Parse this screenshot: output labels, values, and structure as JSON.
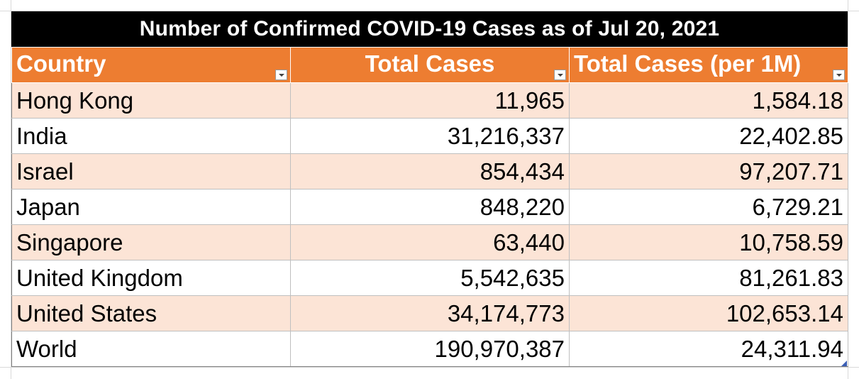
{
  "table": {
    "title": "Number of Confirmed COVID-19 Cases as of Jul 20, 2021",
    "columns": [
      "Country",
      "Total Cases",
      "Total Cases (per 1M)"
    ],
    "rows": [
      {
        "country": "Hong Kong",
        "total_cases": "11,965",
        "per_1m": "1,584.18"
      },
      {
        "country": "India",
        "total_cases": "31,216,337",
        "per_1m": "22,402.85"
      },
      {
        "country": "Israel",
        "total_cases": "854,434",
        "per_1m": "97,207.71"
      },
      {
        "country": "Japan",
        "total_cases": "848,220",
        "per_1m": "6,729.21"
      },
      {
        "country": "Singapore",
        "total_cases": "63,440",
        "per_1m": "10,758.59"
      },
      {
        "country": "United Kingdom",
        "total_cases": "5,542,635",
        "per_1m": "81,261.83"
      },
      {
        "country": "United States",
        "total_cases": "34,174,773",
        "per_1m": "102,653.14"
      },
      {
        "country": "World",
        "total_cases": "190,970,387",
        "per_1m": "24,311.94"
      }
    ]
  },
  "colors": {
    "title_bg": "#000000",
    "header_bg": "#ed7d31",
    "band_bg": "#fce4d6",
    "header_text": "#ffffff"
  },
  "icons": {
    "filter": "chevron-down-icon",
    "resize": "table-resize-handle-icon"
  }
}
